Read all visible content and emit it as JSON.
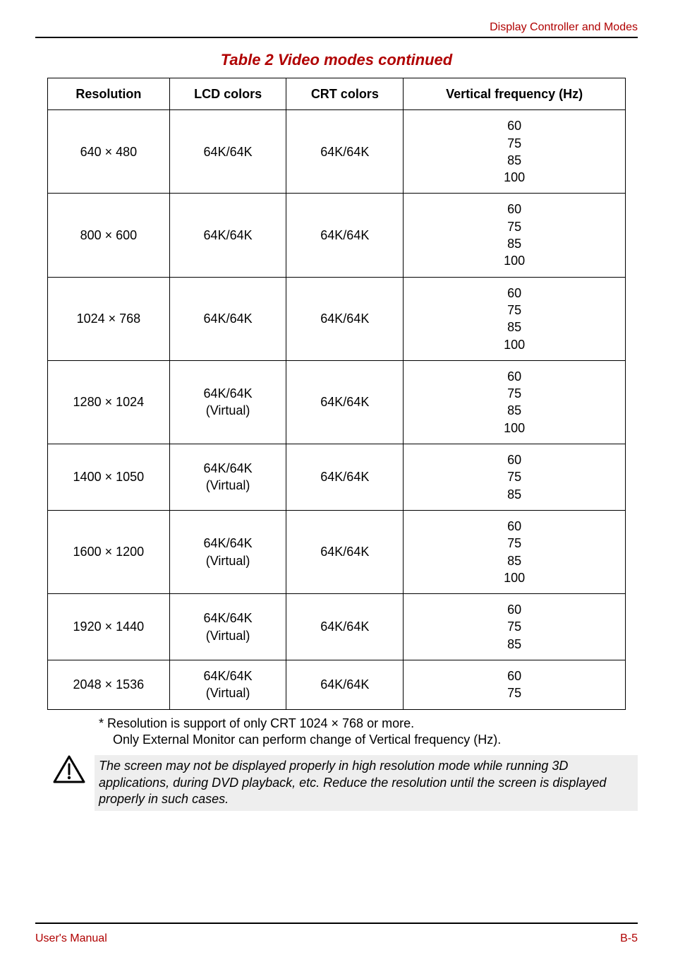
{
  "colors": {
    "red": "#b00000",
    "noteBg": "#eeeeee",
    "border": "#000000"
  },
  "header": {
    "sectionTitle": "Display Controller and Modes"
  },
  "table": {
    "title": "Table 2 Video modes continued",
    "columns": [
      "Resolution",
      "LCD colors",
      "CRT colors",
      "Vertical frequency (Hz)"
    ],
    "rows": [
      {
        "resolution": "640 × 480",
        "lcd": "64K/64K",
        "crt": "64K/64K",
        "freq": "60\n75\n85\n100"
      },
      {
        "resolution": "800 × 600",
        "lcd": "64K/64K",
        "crt": "64K/64K",
        "freq": "60\n75\n85\n100"
      },
      {
        "resolution": "1024 × 768",
        "lcd": "64K/64K",
        "crt": "64K/64K",
        "freq": "60\n75\n85\n100"
      },
      {
        "resolution": "1280 × 1024",
        "lcd": "64K/64K\n(Virtual)",
        "crt": "64K/64K",
        "freq": "60\n75\n85\n100"
      },
      {
        "resolution": "1400 × 1050",
        "lcd": "64K/64K\n(Virtual)",
        "crt": "64K/64K",
        "freq": "60\n75\n85"
      },
      {
        "resolution": "1600 × 1200",
        "lcd": "64K/64K\n(Virtual)",
        "crt": "64K/64K",
        "freq": "60\n75\n85\n100"
      },
      {
        "resolution": "1920 × 1440",
        "lcd": "64K/64K\n(Virtual)",
        "crt": "64K/64K",
        "freq": "60\n75\n85"
      },
      {
        "resolution": "2048 × 1536",
        "lcd": "64K/64K\n(Virtual)",
        "crt": "64K/64K",
        "freq": "60\n75"
      }
    ]
  },
  "footnote": {
    "line1": "* Resolution is support of only CRT 1024 × 768 or more.",
    "line2": "Only External Monitor can perform change of Vertical frequency (Hz)."
  },
  "note": {
    "text": "The screen may not be displayed properly in high resolution mode while running 3D applications, during DVD playback, etc. Reduce the resolution until the screen is displayed properly in such cases."
  },
  "footer": {
    "left": "User's Manual",
    "right": "B-5"
  }
}
